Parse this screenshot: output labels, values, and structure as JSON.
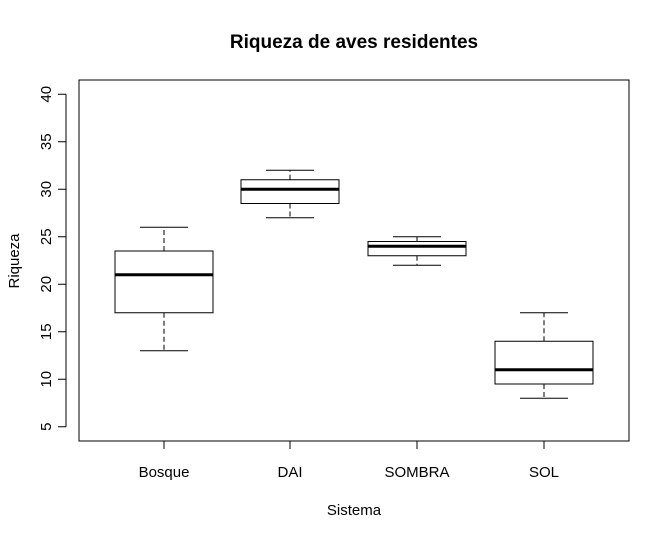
{
  "chart_data": {
    "type": "boxplot",
    "title": "Riqueza de aves residentes",
    "xlabel": "Sistema",
    "ylabel": "Riqueza",
    "ylim": [
      3.5,
      41.5
    ],
    "yticks": [
      5,
      10,
      15,
      20,
      25,
      30,
      35,
      40
    ],
    "categories": [
      "Bosque",
      "DAI",
      "SOMBRA",
      "SOL"
    ],
    "boxes": [
      {
        "category": "Bosque",
        "min": 13,
        "q1": 17,
        "median": 21,
        "q3": 23.5,
        "max": 26
      },
      {
        "category": "DAI",
        "min": 27,
        "q1": 28.5,
        "median": 30,
        "q3": 31,
        "max": 32
      },
      {
        "category": "SOMBRA",
        "min": 22,
        "q1": 23,
        "median": 24,
        "q3": 24.5,
        "max": 25
      },
      {
        "category": "SOL",
        "min": 8,
        "q1": 9.5,
        "median": 11,
        "q3": 14,
        "max": 17
      }
    ],
    "grid": false,
    "legend": "none",
    "colors": {
      "box_fill": "#ffffff",
      "stroke": "#000000"
    }
  }
}
